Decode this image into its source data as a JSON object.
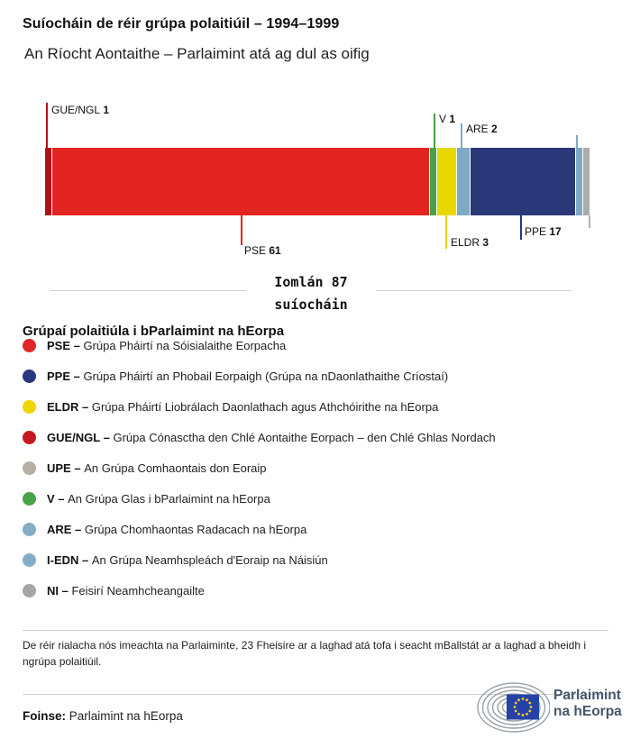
{
  "header": {
    "title": "Suíocháin de réir grúpa polaitiúil – 1994–1999",
    "subtitle": "An Ríocht Aontaithe – Parlaimint atá ag dul as oifig"
  },
  "chart_data": {
    "type": "bar",
    "orientation": "horizontal-stacked",
    "total_seats": 87,
    "total_label_line1": "Iomlán 87",
    "total_label_line2": "suíocháin",
    "segments": [
      {
        "label": "GUE/NGL",
        "seats": 1,
        "color": "#b01218"
      },
      {
        "label": "PSE",
        "seats": 61,
        "color": "#e32522"
      },
      {
        "label": "V",
        "seats": 1,
        "color": "#4aa147"
      },
      {
        "label": "ELDR",
        "seats": 3,
        "color": "#e8d800"
      },
      {
        "label": "ARE",
        "seats": 2,
        "color": "#7fa9c3"
      },
      {
        "label": "PPE",
        "seats": 17,
        "color": "#2a3778"
      },
      {
        "label": "I-EDN",
        "seats": 1,
        "color": "#7fa9c3"
      },
      {
        "label": "NI",
        "seats": 1,
        "color": "#ababab"
      }
    ]
  },
  "legend": {
    "heading": "Grúpaí polaitiúla i bParlaimint na hEorpa",
    "items": [
      {
        "abbr": "PSE –",
        "desc": "Grúpa Pháirtí na Sóisialaithe Eorpacha",
        "color": "#e32528"
      },
      {
        "abbr": "PPE –",
        "desc": "Grúpa Pháirtí an Phobail Eorpaigh (Grúpa na nDaonlathaithe Críostaí)",
        "color": "#293780"
      },
      {
        "abbr": "ELDR –",
        "desc": "Grúpa Pháirtí Liobrálach Daonlathach agus Athchóirithe na hEorpa",
        "color": "#f0d500"
      },
      {
        "abbr": "GUE/NGL –",
        "desc": "Grúpa Cónasctha den Chlé Aontaithe Eorpach – den Chlé Ghlas Nordach",
        "color": "#c2191d"
      },
      {
        "abbr": "UPE –",
        "desc": "An Grúpa Comhaontais don Eoraip",
        "color": "#b7afa3"
      },
      {
        "abbr": "V –",
        "desc": "An Grúpa Glas i bParlaimint na hEorpa",
        "color": "#4aa147"
      },
      {
        "abbr": "ARE –",
        "desc": "Grúpa Chomhaontas Radacach na hEorpa",
        "color": "#85aec6"
      },
      {
        "abbr": "I-EDN –",
        "desc": "An Grúpa Neamhspleách d'Eoraip na Náisiún",
        "color": "#85aec6"
      },
      {
        "abbr": "NI –",
        "desc": "Feisirí Neamhcheangailte",
        "color": "#a6a6a6"
      }
    ]
  },
  "footnote": "De réir rialacha nós imeachta na Parlaiminte, 23 Fheisire ar a laghad atá tofa i seacht mBallstát ar a laghad a bheidh i ngrúpa polaitiúil.",
  "source": {
    "label": "Foinse:",
    "text": "Parlaimint na hEorpa"
  },
  "logo": {
    "line1": "Parlaimint",
    "line2": "na hEorpa"
  }
}
